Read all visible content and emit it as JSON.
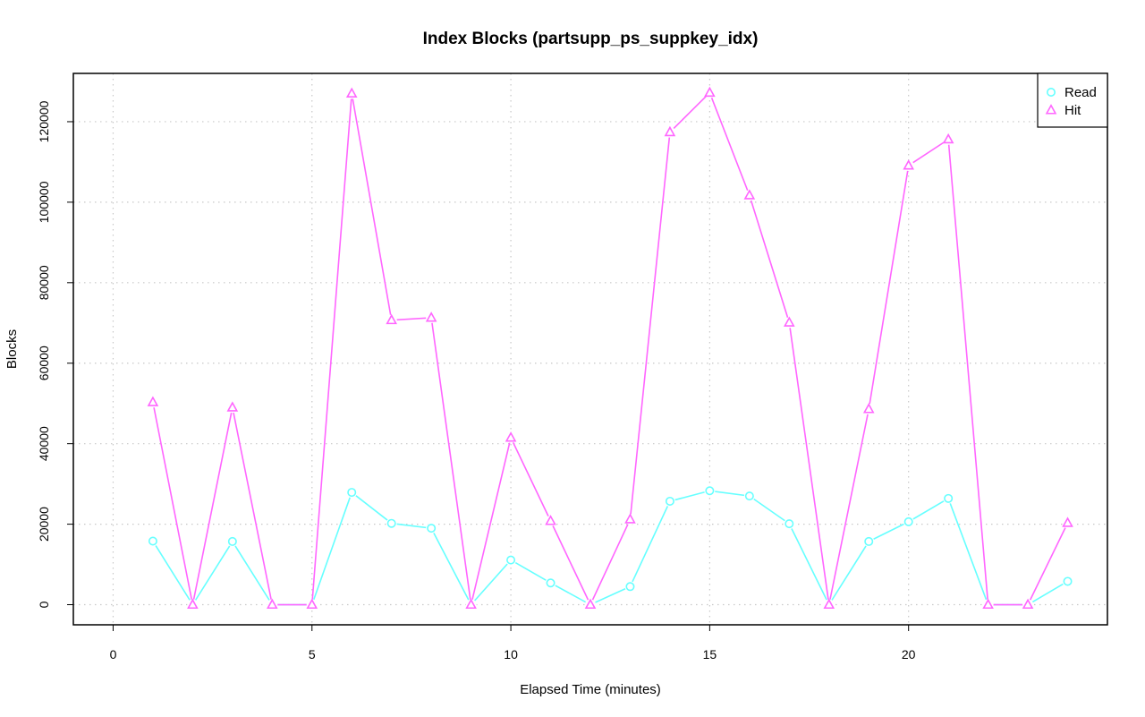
{
  "chart_data": {
    "type": "line",
    "title": "Index Blocks (partsupp_ps_suppkey_idx)",
    "xlabel": "Elapsed Time (minutes)",
    "ylabel": "Blocks",
    "xlim": [
      -1,
      25
    ],
    "ylim": [
      -5000,
      132000
    ],
    "x_ticks": [
      0,
      5,
      10,
      15,
      20
    ],
    "y_ticks": [
      0,
      20000,
      40000,
      60000,
      80000,
      100000,
      120000
    ],
    "grid": true,
    "legend_position": "top-right",
    "x": [
      1,
      2,
      3,
      4,
      5,
      6,
      7,
      8,
      9,
      10,
      11,
      12,
      13,
      14,
      15,
      16,
      17,
      18,
      19,
      20,
      21,
      22,
      23,
      24
    ],
    "series": [
      {
        "name": "Read",
        "color": "#66ffff",
        "marker": "circle",
        "values": [
          15800,
          0,
          15700,
          0,
          0,
          27900,
          20200,
          19000,
          0,
          11100,
          5400,
          0,
          4500,
          25700,
          28300,
          27000,
          20100,
          0,
          15700,
          20600,
          26400,
          0,
          0,
          5800
        ]
      },
      {
        "name": "Hit",
        "color": "#ff66ff",
        "marker": "triangle",
        "values": [
          50300,
          0,
          49000,
          0,
          0,
          127000,
          70700,
          71300,
          0,
          41500,
          20800,
          0,
          21200,
          117400,
          127200,
          101700,
          70100,
          0,
          48600,
          109100,
          115600,
          0,
          0,
          20300
        ]
      }
    ]
  }
}
